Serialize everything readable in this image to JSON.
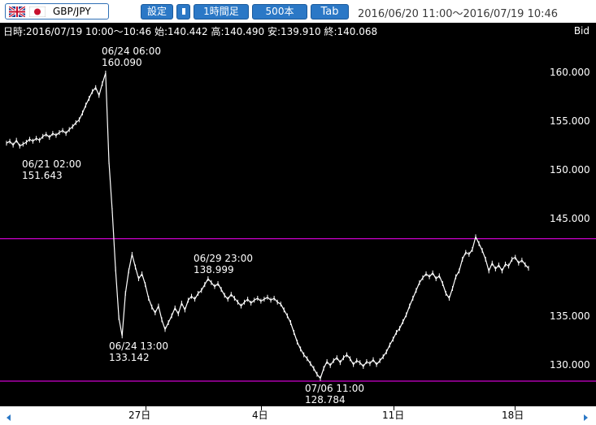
{
  "toolbar": {
    "pair": "GBP/JPY",
    "settings": "設定",
    "fixed_1h": "1時間足",
    "count": "500本",
    "tab": "Tab",
    "range": "2016/06/20 11:00～2016/07/19 10:46"
  },
  "header": {
    "info": "日時:2016/07/19 10:00～10:46 始:140.442 高:140.490 安:139.910 終:140.068",
    "bid": "Bid"
  },
  "y_axis": {
    "ticks": [
      "160.000",
      "155.000",
      "150.000",
      "145.000",
      "135.000",
      "130.000"
    ]
  },
  "x_axis": {
    "ticks": [
      "27日",
      "4日",
      "11日",
      "18日"
    ]
  },
  "annotations": [
    {
      "date": "06/24 06:00",
      "value": "160.090"
    },
    {
      "date": "06/21 02:00",
      "value": "151.643"
    },
    {
      "date": "06/29 23:00",
      "value": "138.999"
    },
    {
      "date": "06/24 13:00",
      "value": "133.142"
    },
    {
      "date": "07/06 11:00",
      "value": "128.784"
    }
  ],
  "colors": {
    "line": "#ffffff",
    "hline": "#ff00ff",
    "accent": "#2b78c6"
  },
  "chart_data": {
    "type": "line",
    "y_reference_lines": [
      143.1,
      128.5
    ],
    "series": [
      {
        "values": [
          152.9,
          153.1,
          152.7,
          153.2,
          152.6,
          152.8,
          153.0,
          153.3,
          153.1,
          153.4,
          153.2,
          153.6,
          153.8,
          153.5,
          153.9,
          153.7,
          154.0,
          154.2,
          153.9,
          154.3,
          154.6,
          155.0,
          155.3,
          156.0,
          156.8,
          157.5,
          158.2,
          158.6,
          157.8,
          159.0,
          160.09,
          151.0,
          146.0,
          140.0,
          135.0,
          133.142,
          137.5,
          139.8,
          141.5,
          140.2,
          139.0,
          139.5,
          138.4,
          137.0,
          136.1,
          135.5,
          136.2,
          134.8,
          133.8,
          134.5,
          135.2,
          136.0,
          135.4,
          136.5,
          135.8,
          136.8,
          137.2,
          136.9,
          137.5,
          137.8,
          138.4,
          138.999,
          138.6,
          138.2,
          138.5,
          137.9,
          137.3,
          136.9,
          137.4,
          137.0,
          136.6,
          136.2,
          136.6,
          136.9,
          136.5,
          136.8,
          137.0,
          136.7,
          136.9,
          137.1,
          136.8,
          137.0,
          136.6,
          136.4,
          135.8,
          135.2,
          134.5,
          133.5,
          132.5,
          131.8,
          131.2,
          130.8,
          130.3,
          129.8,
          129.2,
          128.784,
          129.8,
          130.5,
          130.1,
          130.6,
          130.9,
          130.4,
          130.9,
          131.2,
          130.8,
          130.2,
          130.6,
          130.4,
          130.0,
          130.5,
          130.3,
          130.7,
          130.2,
          130.6,
          131.0,
          131.5,
          132.2,
          132.8,
          133.5,
          133.9,
          134.6,
          135.3,
          136.2,
          137.0,
          137.8,
          138.6,
          139.1,
          139.5,
          139.2,
          139.6,
          139.0,
          139.3,
          138.5,
          137.5,
          137.0,
          138.0,
          139.2,
          139.8,
          141.0,
          141.7,
          141.5,
          142.0,
          143.3,
          142.6,
          141.9,
          141.0,
          139.8,
          140.6,
          140.0,
          140.4,
          139.8,
          140.5,
          140.3,
          141.0,
          141.2,
          140.6,
          140.9,
          140.442,
          140.068
        ]
      }
    ],
    "ylim": [
      127.0,
      165.0
    ]
  }
}
